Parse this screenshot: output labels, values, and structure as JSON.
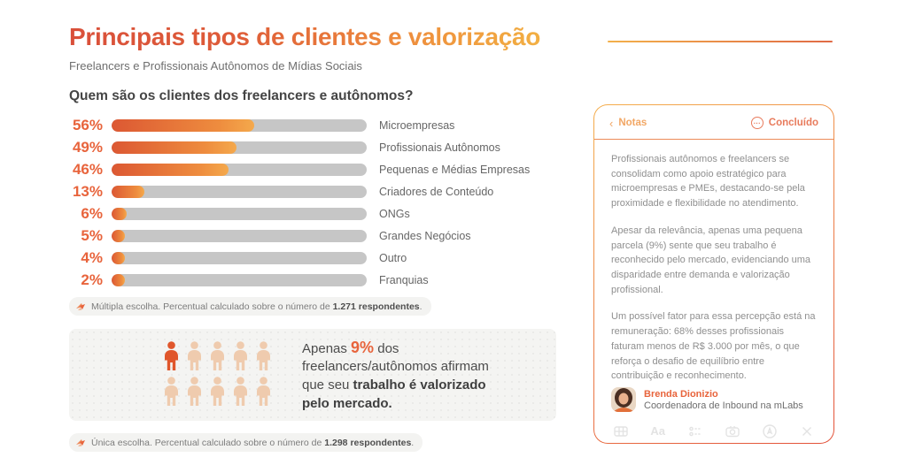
{
  "header": {
    "title": "Principais tipos de clientes e valorização",
    "subtitle": "Freelancers e Profissionais Autônomos de Mídias Sociais"
  },
  "chart_data": {
    "type": "bar",
    "orientation": "horizontal",
    "title": "Quem são os clientes dos freelancers e autônomos?",
    "categories": [
      "Microempresas",
      "Profissionais Autônomos",
      "Pequenas e Médias Empresas",
      "Criadores de Conteúdo",
      "ONGs",
      "Grandes Negócios",
      "Outro",
      "Franquias"
    ],
    "values": [
      56,
      49,
      46,
      13,
      6,
      5,
      4,
      2
    ],
    "value_unit": "%",
    "xlim": [
      0,
      100
    ],
    "bar_color_gradient": [
      "#DC5833",
      "#F4A94C"
    ],
    "track_color": "#C6C6C6",
    "value_label_color": "#E8643C"
  },
  "chart_note": {
    "prefix": "Múltipla escolha. Percentual calculado sobre o número de ",
    "bold": "1.271 respondentes",
    "suffix": "."
  },
  "highlight": {
    "people_total": 10,
    "people_highlighted": 1,
    "text_part1": "Apenas ",
    "pct": "9%",
    "text_part2": " dos freelancers/autônomos afirmam que seu ",
    "text_bold": "trabalho é valorizado pelo mercado.",
    "highlight_color": "#E0562B",
    "people_color": "#EFCBAE"
  },
  "highlight_note": {
    "prefix": "Única escolha. Percentual calculado sobre o número de ",
    "bold": "1.298 respondentes",
    "suffix": "."
  },
  "notes_panel": {
    "back_label": "Notas",
    "status_label": "Concluído",
    "paragraphs": [
      "Profissionais autônomos e freelancers se consolidam como apoio estratégico para microempresas e PMEs, destacando-se pela proximidade e flexibilidade no atendimento.",
      "Apesar da relevância, apenas uma pequena parcela (9%) sente que seu trabalho é reconhecido pelo mercado, evidenciando uma disparidade entre demanda e valorização profissional.",
      "Um possível fator para essa percepção está na remuneração: 68% desses profissionais faturam menos de R$ 3.000 por mês, o que reforça o desafio de equilíbrio entre contribuição e reconhecimento."
    ],
    "author": {
      "name": "Brenda Dionizio",
      "role": "Coordenadora de Inbound na mLabs"
    },
    "toolbar_icons": [
      "table-icon",
      "text-style-icon",
      "checklist-icon",
      "camera-icon",
      "draw-icon",
      "close-icon"
    ],
    "text_icon_label": "Aa",
    "accent_colors": {
      "border_top": "#F4AE4C",
      "border_bottom": "#E25038",
      "back": "#F2A765",
      "status": "#E87B5C"
    }
  }
}
